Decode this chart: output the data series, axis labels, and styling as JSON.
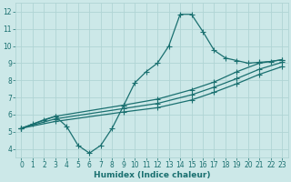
{
  "xlabel": "Humidex (Indice chaleur)",
  "bg_color": "#cce8e8",
  "grid_color": "#b0d4d4",
  "line_color": "#1a7070",
  "xlim": [
    -0.5,
    23.5
  ],
  "ylim": [
    3.5,
    12.5
  ],
  "xticks": [
    0,
    1,
    2,
    3,
    4,
    5,
    6,
    7,
    8,
    9,
    10,
    11,
    12,
    13,
    14,
    15,
    16,
    17,
    18,
    19,
    20,
    21,
    22,
    23
  ],
  "yticks": [
    4,
    5,
    6,
    7,
    8,
    9,
    10,
    11,
    12
  ],
  "line1_x": [
    0,
    1,
    2,
    3,
    4,
    5,
    6,
    7,
    8,
    9,
    10,
    11,
    12,
    13,
    14,
    15,
    16,
    17,
    18,
    19,
    20,
    21,
    22,
    23
  ],
  "line1_y": [
    5.2,
    5.45,
    5.7,
    5.9,
    5.3,
    4.2,
    3.75,
    4.2,
    5.2,
    6.5,
    7.85,
    8.5,
    9.0,
    10.0,
    11.85,
    11.85,
    10.85,
    9.75,
    9.3,
    9.15,
    9.0,
    9.05,
    9.1,
    9.2
  ],
  "line2_x": [
    0,
    3,
    9,
    12,
    15,
    17,
    19,
    21,
    23
  ],
  "line2_y": [
    5.2,
    5.9,
    6.55,
    6.9,
    7.45,
    7.9,
    8.5,
    9.0,
    9.2
  ],
  "line3_x": [
    0,
    3,
    9,
    12,
    15,
    17,
    19,
    21,
    23
  ],
  "line3_y": [
    5.2,
    5.75,
    6.35,
    6.65,
    7.15,
    7.6,
    8.1,
    8.65,
    9.05
  ],
  "line4_x": [
    0,
    3,
    9,
    12,
    15,
    17,
    19,
    21,
    23
  ],
  "line4_y": [
    5.2,
    5.6,
    6.15,
    6.4,
    6.85,
    7.3,
    7.8,
    8.35,
    8.8
  ]
}
